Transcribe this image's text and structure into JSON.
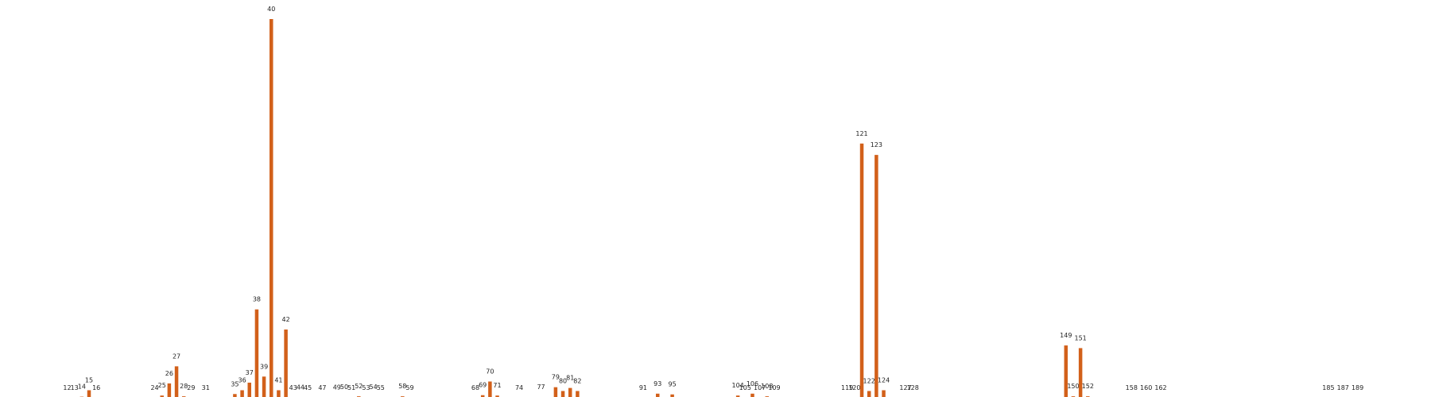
{
  "chart_data": {
    "type": "bar",
    "title": "",
    "xlabel": "",
    "ylabel": "",
    "grid": false,
    "legend": "none",
    "bar_color": "#d2601a",
    "ylim": [
      0,
      100
    ],
    "categories": [
      "12",
      "13",
      "14",
      "15",
      "16",
      "24",
      "25",
      "26",
      "27",
      "28",
      "29",
      "31",
      "35",
      "36",
      "37",
      "38",
      "39",
      "40",
      "41",
      "42",
      "43",
      "44",
      "45",
      "47",
      "49",
      "50",
      "51",
      "52",
      "53",
      "54",
      "55",
      "58",
      "59",
      "68",
      "69",
      "70",
      "71",
      "74",
      "77",
      "79",
      "80",
      "81",
      "82",
      "91",
      "93",
      "95",
      "104",
      "105",
      "106",
      "107",
      "108",
      "109",
      "119",
      "120",
      "121",
      "122",
      "123",
      "124",
      "127",
      "128",
      "149",
      "150",
      "151",
      "152",
      "158",
      "160",
      "162",
      "185",
      "187",
      "189"
    ],
    "values": [
      0.1,
      0.1,
      0.5,
      2.2,
      0.1,
      0.1,
      0.8,
      4.0,
      8.5,
      0.6,
      0.2,
      0.1,
      1.2,
      2.2,
      4.2,
      23.5,
      5.8,
      100,
      2.2,
      18.2,
      0.1,
      0.3,
      0.1,
      0.1,
      0.3,
      0.4,
      0.1,
      0.6,
      0.1,
      0.4,
      0.1,
      0.6,
      0.1,
      0.1,
      0.9,
      4.5,
      0.8,
      0.1,
      0.4,
      3.0,
      2.0,
      2.8,
      2.0,
      0.1,
      1.3,
      1.1,
      0.8,
      0.1,
      1.3,
      0.1,
      0.6,
      0.1,
      0.1,
      0.1,
      67.2,
      2.0,
      64.2,
      2.2,
      0.1,
      0.1,
      14.0,
      0.6,
      13.3,
      0.6,
      0.1,
      0.1,
      0.1,
      0.1,
      0.1,
      0.1
    ]
  }
}
